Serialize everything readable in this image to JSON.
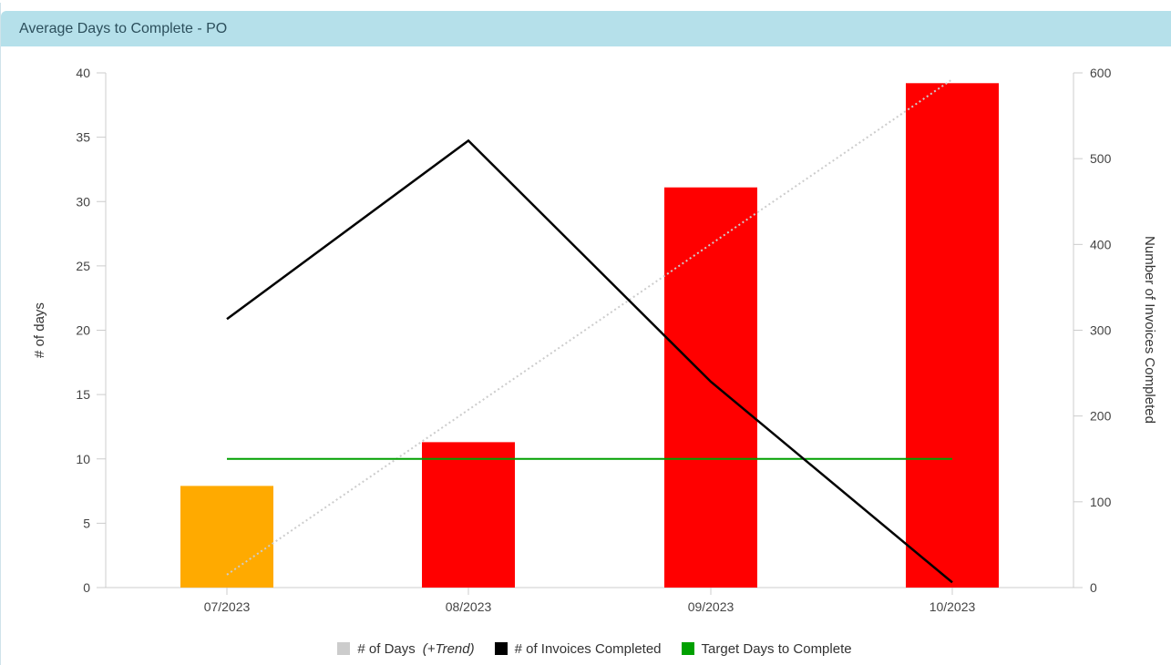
{
  "panel": {
    "title": "Average Days to Complete - PO"
  },
  "chart_data": {
    "type": "bar",
    "categories": [
      "07/2023",
      "08/2023",
      "09/2023",
      "10/2023"
    ],
    "series": [
      {
        "name": "# of Days",
        "legend_suffix": "(+Trend)",
        "kind": "bar",
        "axis": "left",
        "values": [
          7.9,
          11.3,
          31.1,
          39.2
        ],
        "bar_colors": [
          "#ffaa00",
          "#ff0000",
          "#ff0000",
          "#ff0000"
        ],
        "legend_color": "#cccccc",
        "trend": [
          1.0,
          39.5
        ],
        "trend_color": "#cccccc"
      },
      {
        "name": "# of Invoices Completed",
        "kind": "line",
        "axis": "right",
        "values": [
          313,
          521,
          240,
          6
        ],
        "color": "#000000"
      },
      {
        "name": "Target Days to Complete",
        "kind": "line",
        "axis": "left",
        "values": [
          10,
          10,
          10,
          10
        ],
        "color": "#00a000"
      }
    ],
    "yleft": {
      "label": "# of days",
      "lim": [
        0,
        40
      ],
      "ticks": [
        0,
        5,
        10,
        15,
        20,
        25,
        30,
        35,
        40
      ]
    },
    "yright": {
      "label": "Number of Invoices Completed",
      "lim": [
        0,
        600
      ],
      "ticks": [
        0,
        100,
        200,
        300,
        400,
        500,
        600
      ]
    },
    "grid": false,
    "legend_position": "bottom-center"
  }
}
